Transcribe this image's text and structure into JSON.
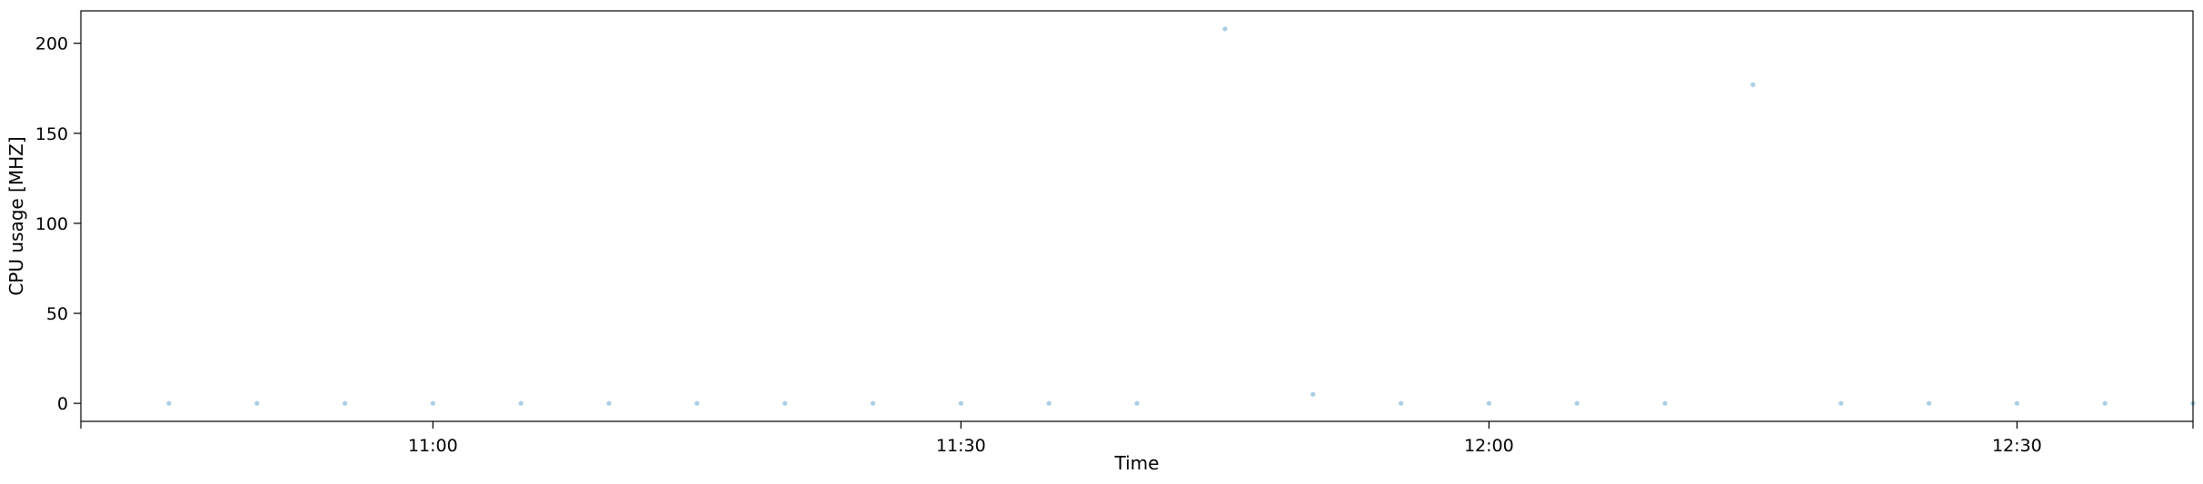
{
  "chart_data": {
    "type": "scatter",
    "title": "",
    "xlabel": "Time",
    "ylabel": "CPU usage [MHZ]",
    "x_range": [
      "10:40",
      "12:40"
    ],
    "ylim": [
      -10,
      218
    ],
    "x_ticks": [
      "10:40",
      "11:00",
      "11:30",
      "12:00",
      "12:30",
      "12:40"
    ],
    "x_tick_labels": [
      "",
      "11:00",
      "11:30",
      "12:00",
      "12:30",
      ""
    ],
    "y_ticks": [
      0,
      50,
      100,
      150,
      200
    ],
    "y_tick_labels": [
      "0",
      "50",
      "100",
      "150",
      "200"
    ],
    "grid": false,
    "legend": null,
    "marker_color": "#9ecae1",
    "points": [
      {
        "x": "10:45",
        "y": 0
      },
      {
        "x": "10:50",
        "y": 0
      },
      {
        "x": "10:55",
        "y": 0
      },
      {
        "x": "11:00",
        "y": 0
      },
      {
        "x": "11:05",
        "y": 0
      },
      {
        "x": "11:10",
        "y": 0
      },
      {
        "x": "11:15",
        "y": 0
      },
      {
        "x": "11:20",
        "y": 0
      },
      {
        "x": "11:25",
        "y": 0
      },
      {
        "x": "11:30",
        "y": 0
      },
      {
        "x": "11:35",
        "y": 0
      },
      {
        "x": "11:40",
        "y": 0
      },
      {
        "x": "11:45",
        "y": 208
      },
      {
        "x": "11:50",
        "y": 5
      },
      {
        "x": "11:55",
        "y": 0
      },
      {
        "x": "12:00",
        "y": 0
      },
      {
        "x": "12:05",
        "y": 0
      },
      {
        "x": "12:10",
        "y": 0
      },
      {
        "x": "12:15",
        "y": 177
      },
      {
        "x": "12:20",
        "y": 0
      },
      {
        "x": "12:25",
        "y": 0
      },
      {
        "x": "12:30",
        "y": 0
      },
      {
        "x": "12:35",
        "y": 0
      },
      {
        "x": "12:40",
        "y": 0
      }
    ]
  }
}
